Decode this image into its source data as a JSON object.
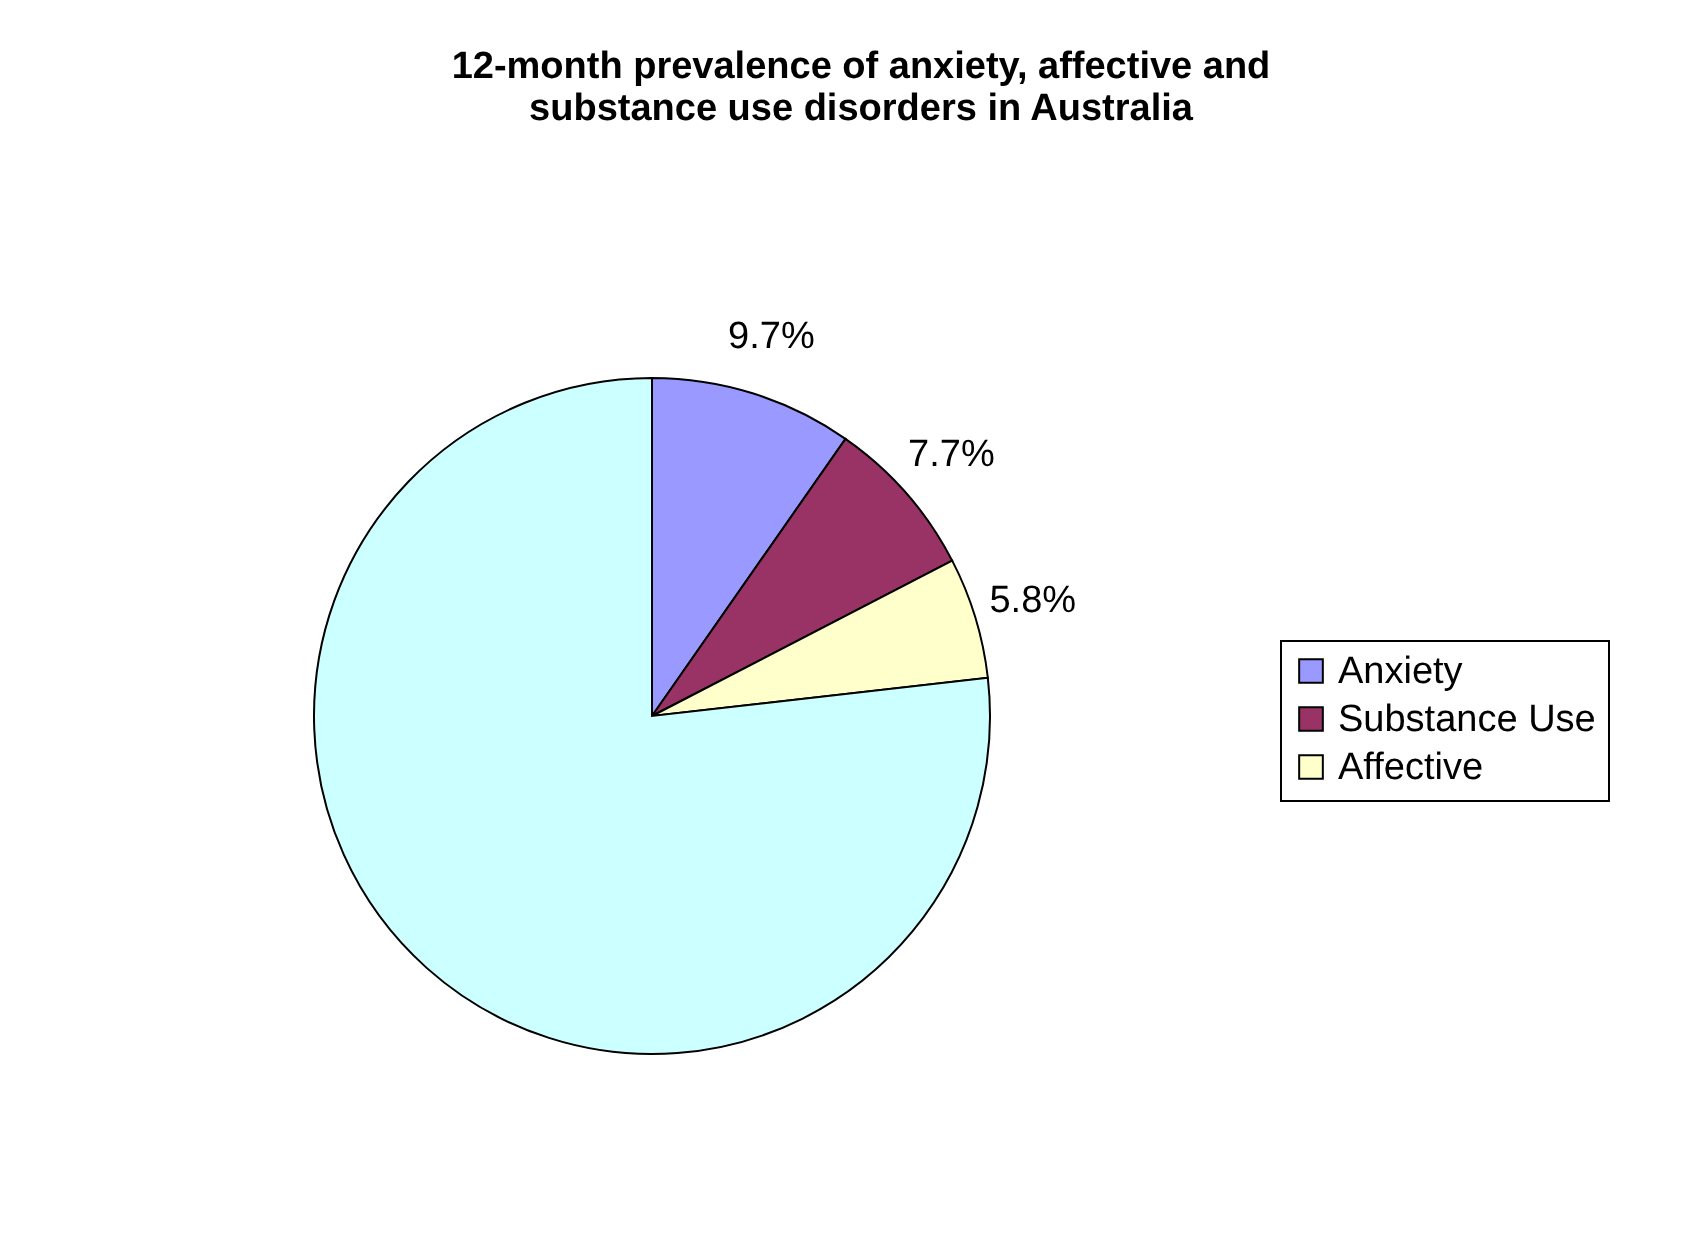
{
  "chart_data": {
    "type": "pie",
    "title": "12-month prevalence of anxiety, affective and substance use disorders in Australia",
    "categories": [
      "Anxiety",
      "Substance Use",
      "Affective",
      null
    ],
    "values": [
      9.7,
      7.7,
      5.8,
      76.8
    ],
    "colors": [
      "#9999ff",
      "#993366",
      "#ffffcc",
      "#ccffff"
    ],
    "value_labels": [
      "9.7%",
      "7.7%",
      "5.8%",
      null
    ],
    "legend": "right"
  }
}
